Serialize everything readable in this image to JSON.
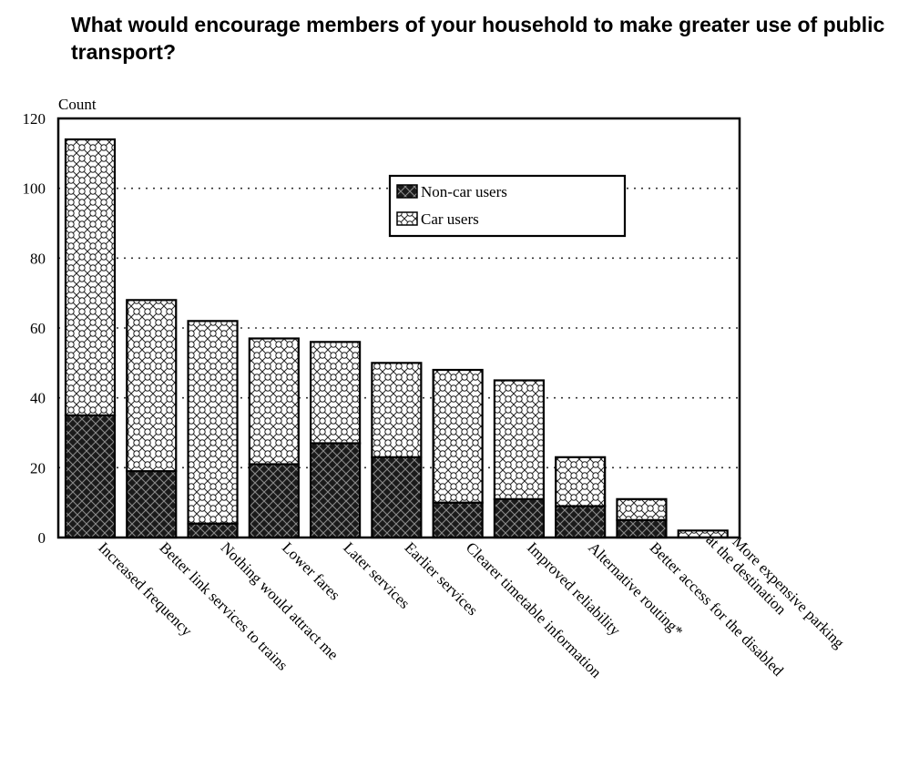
{
  "chart_data": {
    "type": "bar",
    "stacked": true,
    "title": "What would encourage members of your household to make greater use of public transport?",
    "ylabel": "Count",
    "ylim": [
      0,
      120
    ],
    "yticks": [
      0,
      20,
      40,
      60,
      80,
      100,
      120
    ],
    "grid": "horizontal dotted",
    "legend_position": "top-right",
    "categories": [
      [
        "Increased frequency"
      ],
      [
        "Better link services to trains"
      ],
      [
        "Nothing would attract me"
      ],
      [
        "Lower fares"
      ],
      [
        "Later services"
      ],
      [
        "Earlier services"
      ],
      [
        "Clearer timetable information"
      ],
      [
        "Improved reliability"
      ],
      [
        "Alternative routing*"
      ],
      [
        "Better access for the disabled"
      ],
      [
        "More expensive parking",
        "at the destination"
      ]
    ],
    "series": [
      {
        "name": "Non-car users",
        "pattern": "dark-crosshatch",
        "values": [
          35,
          19,
          4,
          21,
          27,
          23,
          10,
          11,
          9,
          5,
          0
        ]
      },
      {
        "name": "Car users",
        "pattern": "light-circles",
        "values": [
          79,
          49,
          58,
          36,
          29,
          27,
          38,
          34,
          14,
          6,
          2
        ]
      }
    ]
  }
}
